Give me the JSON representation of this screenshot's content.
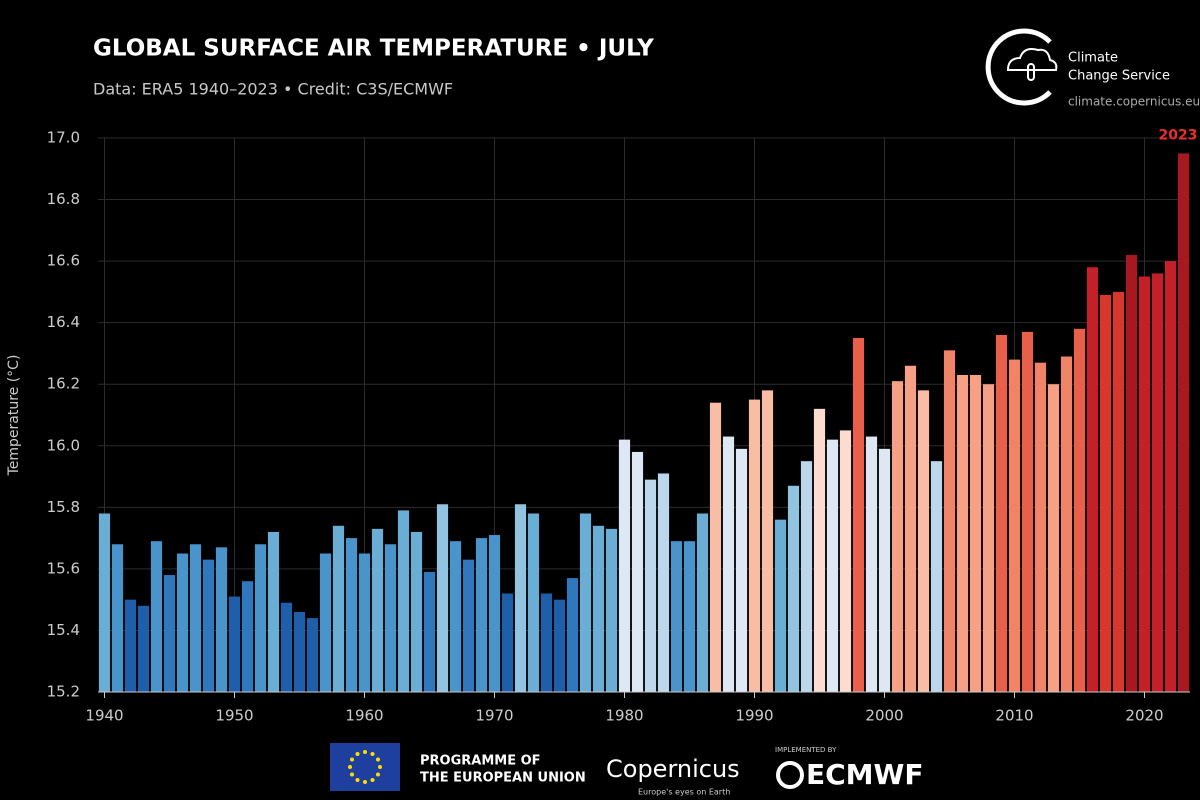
{
  "chart_data": {
    "type": "bar",
    "title": "GLOBAL SURFACE AIR TEMPERATURE • JULY",
    "subtitle": "Data: ERA5 1940–2023 • Credit: C3S/ECMWF",
    "y_label": "Temperature (°C)",
    "x": [
      1940,
      1941,
      1942,
      1943,
      1944,
      1945,
      1946,
      1947,
      1948,
      1949,
      1950,
      1951,
      1952,
      1953,
      1954,
      1955,
      1956,
      1957,
      1958,
      1959,
      1960,
      1961,
      1962,
      1963,
      1964,
      1965,
      1966,
      1967,
      1968,
      1969,
      1970,
      1971,
      1972,
      1973,
      1974,
      1975,
      1976,
      1977,
      1978,
      1979,
      1980,
      1981,
      1982,
      1983,
      1984,
      1985,
      1986,
      1987,
      1988,
      1989,
      1990,
      1991,
      1992,
      1993,
      1994,
      1995,
      1996,
      1997,
      1998,
      1999,
      2000,
      2001,
      2002,
      2003,
      2004,
      2005,
      2006,
      2007,
      2008,
      2009,
      2010,
      2011,
      2012,
      2013,
      2014,
      2015,
      2016,
      2017,
      2018,
      2019,
      2020,
      2021,
      2022,
      2023
    ],
    "values": [
      15.78,
      15.68,
      15.5,
      15.48,
      15.69,
      15.58,
      15.65,
      15.68,
      15.63,
      15.67,
      15.51,
      15.56,
      15.68,
      15.72,
      15.49,
      15.46,
      15.44,
      15.65,
      15.74,
      15.7,
      15.65,
      15.73,
      15.68,
      15.79,
      15.72,
      15.59,
      15.81,
      15.69,
      15.63,
      15.7,
      15.71,
      15.52,
      15.81,
      15.78,
      15.52,
      15.5,
      15.57,
      15.78,
      15.74,
      15.73,
      16.02,
      15.98,
      15.89,
      15.91,
      15.69,
      15.69,
      15.78,
      16.14,
      16.03,
      15.99,
      16.15,
      16.18,
      15.76,
      15.87,
      15.95,
      16.12,
      16.02,
      16.05,
      16.35,
      16.03,
      15.99,
      16.21,
      16.26,
      16.18,
      15.95,
      16.31,
      16.23,
      16.23,
      16.2,
      16.36,
      16.28,
      16.37,
      16.27,
      16.2,
      16.29,
      16.38,
      16.58,
      16.49,
      16.5,
      16.62,
      16.55,
      16.56,
      16.6,
      16.95
    ],
    "colors": [
      "#6aaed6",
      "#4a94cc",
      "#1f5ea8",
      "#1f5ea8",
      "#4a94cc",
      "#2f78bd",
      "#4a94cc",
      "#4a94cc",
      "#2f78bd",
      "#4a94cc",
      "#1f5ea8",
      "#2f78bd",
      "#4a94cc",
      "#6aaed6",
      "#1f5ea8",
      "#1f5ea8",
      "#1f5ea8",
      "#4a94cc",
      "#6aaed6",
      "#4a94cc",
      "#4a94cc",
      "#6aaed6",
      "#4a94cc",
      "#6aaed6",
      "#6aaed6",
      "#2f78bd",
      "#92c4e2",
      "#4a94cc",
      "#2f78bd",
      "#4a94cc",
      "#4a94cc",
      "#1f5ea8",
      "#92c4e2",
      "#6aaed6",
      "#1f5ea8",
      "#1f5ea8",
      "#2f78bd",
      "#6aaed6",
      "#6aaed6",
      "#6aaed6",
      "#dde8f4",
      "#dde8f4",
      "#bcd6ec",
      "#bcd6ec",
      "#4a94cc",
      "#4a94cc",
      "#6aaed6",
      "#f9bca4",
      "#dde8f4",
      "#dde8f4",
      "#f9bca4",
      "#f9bca4",
      "#6aaed6",
      "#92c4e2",
      "#bcd6ec",
      "#fbdccf",
      "#dde8f4",
      "#fbdccf",
      "#e8604a",
      "#dde8f4",
      "#dde8f4",
      "#f6a185",
      "#f6a185",
      "#f9bca4",
      "#bcd6ec",
      "#f08466",
      "#f6a185",
      "#f6a185",
      "#f6a185",
      "#e8604a",
      "#f08466",
      "#e8604a",
      "#f08466",
      "#f6a185",
      "#f08466",
      "#e8604a",
      "#c4202a",
      "#d7372d",
      "#d7372d",
      "#a81820",
      "#c4202a",
      "#c4202a",
      "#c4202a",
      "#a81820"
    ],
    "xlim": [
      1939.5,
      2023.5
    ],
    "xticks": [
      1940,
      1950,
      1960,
      1970,
      1980,
      1990,
      2000,
      2010,
      2020
    ],
    "ylim": [
      15.2,
      17.0
    ],
    "yticks": [
      15.2,
      15.4,
      15.6,
      15.8,
      {
        "value": 16,
        "label": "16.0"
      },
      16.2,
      16.4,
      16.6,
      16.8,
      {
        "value": 17,
        "label": "17.0"
      }
    ],
    "grid": true,
    "annotations": [
      {
        "text": "2023",
        "x": 2023,
        "y": 16.95,
        "color": "#e8302a"
      }
    ]
  },
  "logo": {
    "line1": "Climate",
    "line2": "Change Service",
    "url": "climate.copernicus.eu"
  },
  "footer": {
    "eu_line1": "PROGRAMME OF",
    "eu_line2": "THE EUROPEAN UNION",
    "copernicus": "Copernicus",
    "copernicus_tagline": "Europe's eyes on Earth",
    "implemented": "IMPLEMENTED BY",
    "ecmwf": "ECMWF"
  }
}
